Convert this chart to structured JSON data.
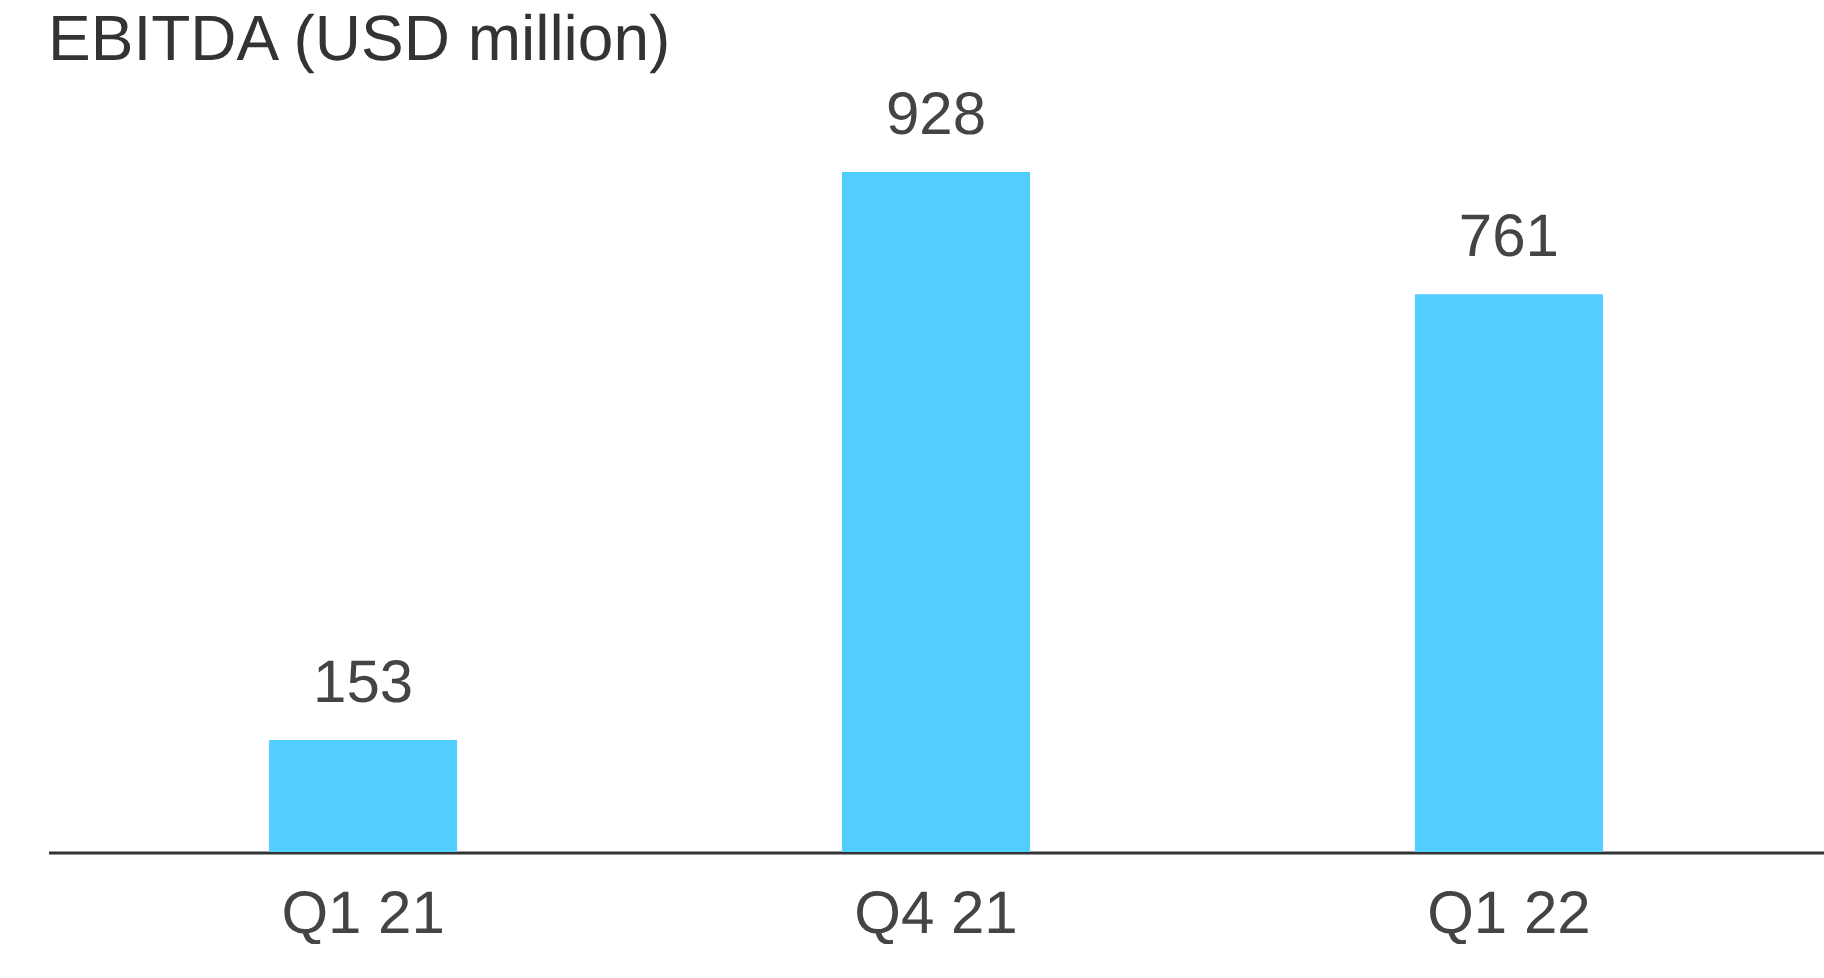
{
  "chart_data": {
    "type": "bar",
    "title": "EBITDA (USD million)",
    "categories": [
      "Q1 21",
      "Q4 21",
      "Q1 22"
    ],
    "values": [
      153,
      928,
      761
    ],
    "color": "#52cdff",
    "data_labels": true
  }
}
